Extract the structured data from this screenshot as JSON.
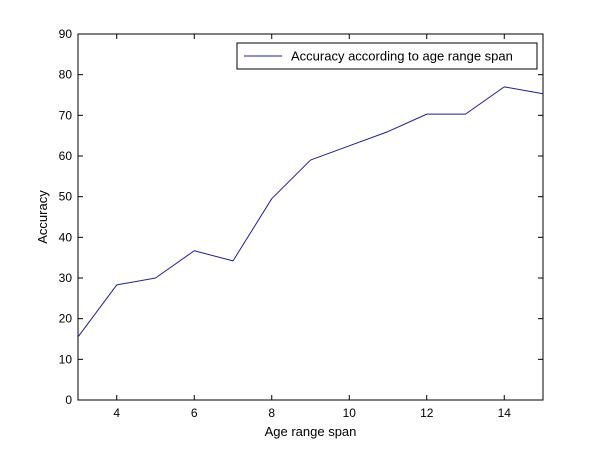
{
  "chart_data": {
    "type": "line",
    "title": "",
    "xlabel": "Age range span",
    "ylabel": "Accuracy",
    "xlim": [
      3,
      15
    ],
    "ylim": [
      0,
      90
    ],
    "xticks": [
      4,
      6,
      8,
      10,
      12,
      14
    ],
    "yticks": [
      0,
      10,
      20,
      30,
      40,
      50,
      60,
      70,
      80,
      90
    ],
    "grid": false,
    "legend_position": "top-right",
    "series": [
      {
        "name": "Accuracy according to age range span",
        "color": "#1f1f8f",
        "x": [
          3,
          4,
          5,
          6,
          7,
          8,
          9,
          10,
          11,
          12,
          13,
          14,
          15
        ],
        "y": [
          15.5,
          28.3,
          30.0,
          36.7,
          34.2,
          49.5,
          59.0,
          62.5,
          66.0,
          70.3,
          70.3,
          77.0,
          75.3
        ]
      }
    ]
  }
}
